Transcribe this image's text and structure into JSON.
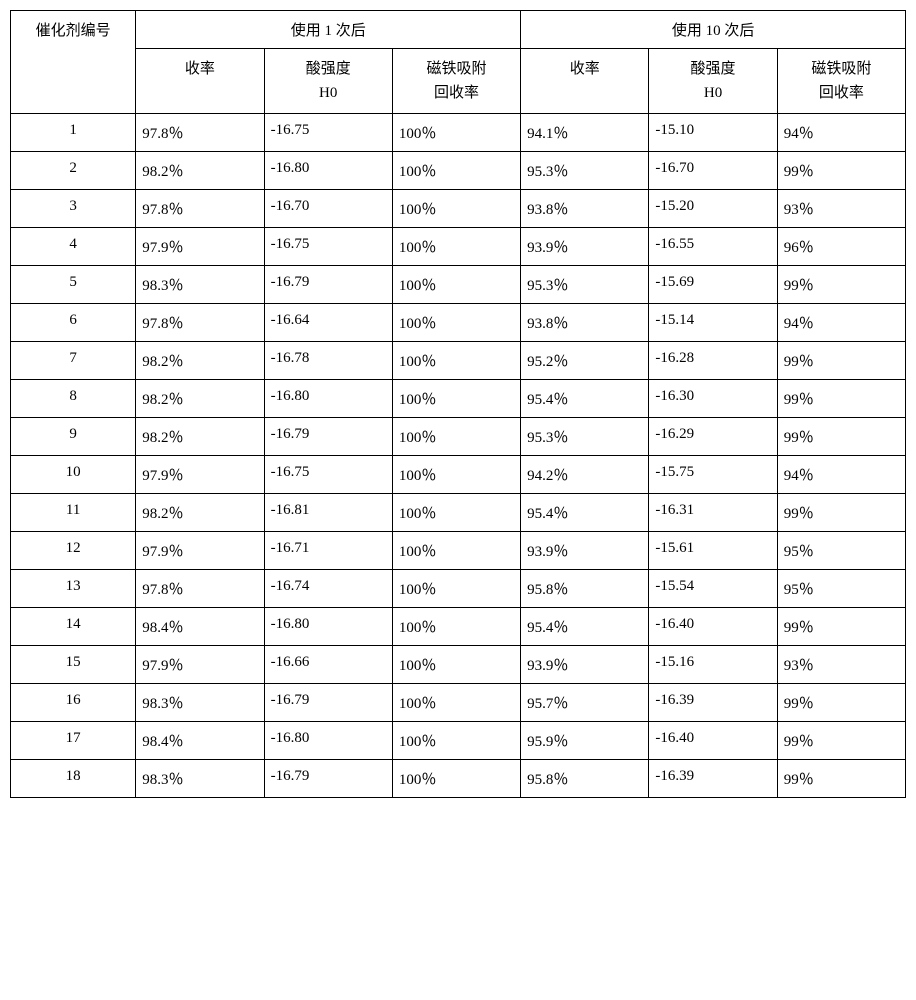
{
  "table": {
    "headers": {
      "catalyst_id": "催化剂编号",
      "after_1_use": "使用 1 次后",
      "after_10_uses": "使用 10 次后",
      "yield": "收率",
      "acid_strength_line1": "酸强度",
      "acid_strength_line2": "H0",
      "magnetic_line1": "磁铁吸附",
      "magnetic_line2": "回收率"
    },
    "columns": [
      "催化剂编号",
      "收率",
      "酸强度 H0",
      "磁铁吸附回收率",
      "收率",
      "酸强度 H0",
      "磁铁吸附回收率"
    ],
    "rows": [
      {
        "id": "1",
        "y1": "97.8％",
        "a1": "-16.75",
        "m1": "100％",
        "y10": "94.1％",
        "a10": "-15.10",
        "m10": "94％"
      },
      {
        "id": "2",
        "y1": "98.2％",
        "a1": "-16.80",
        "m1": "100％",
        "y10": "95.3％",
        "a10": "-16.70",
        "m10": "99％"
      },
      {
        "id": "3",
        "y1": "97.8％",
        "a1": "-16.70",
        "m1": "100％",
        "y10": "93.8％",
        "a10": "-15.20",
        "m10": "93％"
      },
      {
        "id": "4",
        "y1": "97.9％",
        "a1": "-16.75",
        "m1": "100％",
        "y10": "93.9％",
        "a10": "-16.55",
        "m10": "96％"
      },
      {
        "id": "5",
        "y1": "98.3％",
        "a1": "-16.79",
        "m1": "100％",
        "y10": "95.3％",
        "a10": "-15.69",
        "m10": "99％"
      },
      {
        "id": "6",
        "y1": "97.8％",
        "a1": "-16.64",
        "m1": "100％",
        "y10": "93.8％",
        "a10": "-15.14",
        "m10": "94％"
      },
      {
        "id": "7",
        "y1": "98.2％",
        "a1": "-16.78",
        "m1": "100％",
        "y10": "95.2％",
        "a10": "-16.28",
        "m10": "99％"
      },
      {
        "id": "8",
        "y1": "98.2％",
        "a1": "-16.80",
        "m1": "100％",
        "y10": "95.4％",
        "a10": "-16.30",
        "m10": "99％"
      },
      {
        "id": "9",
        "y1": "98.2％",
        "a1": "-16.79",
        "m1": "100％",
        "y10": "95.3％",
        "a10": "-16.29",
        "m10": "99％"
      },
      {
        "id": "10",
        "y1": "97.9％",
        "a1": "-16.75",
        "m1": "100％",
        "y10": "94.2％",
        "a10": "-15.75",
        "m10": "94％"
      },
      {
        "id": "11",
        "y1": "98.2％",
        "a1": "-16.81",
        "m1": "100％",
        "y10": "95.4％",
        "a10": "-16.31",
        "m10": "99％"
      },
      {
        "id": "12",
        "y1": "97.9％",
        "a1": "-16.71",
        "m1": "100％",
        "y10": "93.9％",
        "a10": "-15.61",
        "m10": "95％"
      },
      {
        "id": "13",
        "y1": "97.8％",
        "a1": "-16.74",
        "m1": "100％",
        "y10": "95.8％",
        "a10": "-15.54",
        "m10": "95％"
      },
      {
        "id": "14",
        "y1": "98.4％",
        "a1": "-16.80",
        "m1": "100％",
        "y10": "95.4％",
        "a10": "-16.40",
        "m10": "99％"
      },
      {
        "id": "15",
        "y1": "97.9％",
        "a1": "-16.66",
        "m1": "100％",
        "y10": "93.9％",
        "a10": "-15.16",
        "m10": "93％"
      },
      {
        "id": "16",
        "y1": "98.3％",
        "a1": "-16.79",
        "m1": "100％",
        "y10": "95.7％",
        "a10": "-16.39",
        "m10": "99％"
      },
      {
        "id": "17",
        "y1": "98.4％",
        "a1": "-16.80",
        "m1": "100％",
        "y10": "95.9％",
        "a10": "-16.40",
        "m10": "99％"
      },
      {
        "id": "18",
        "y1": "98.3％",
        "a1": "-16.79",
        "m1": "100％",
        "y10": "95.8％",
        "a10": "-16.39",
        "m10": "99％"
      }
    ],
    "styling": {
      "border_color": "#000000",
      "background_color": "#ffffff",
      "text_color": "#000000",
      "font_size": 15,
      "cell_padding": "8px 6px",
      "text_align_id": "center",
      "text_align_data": "left"
    }
  }
}
